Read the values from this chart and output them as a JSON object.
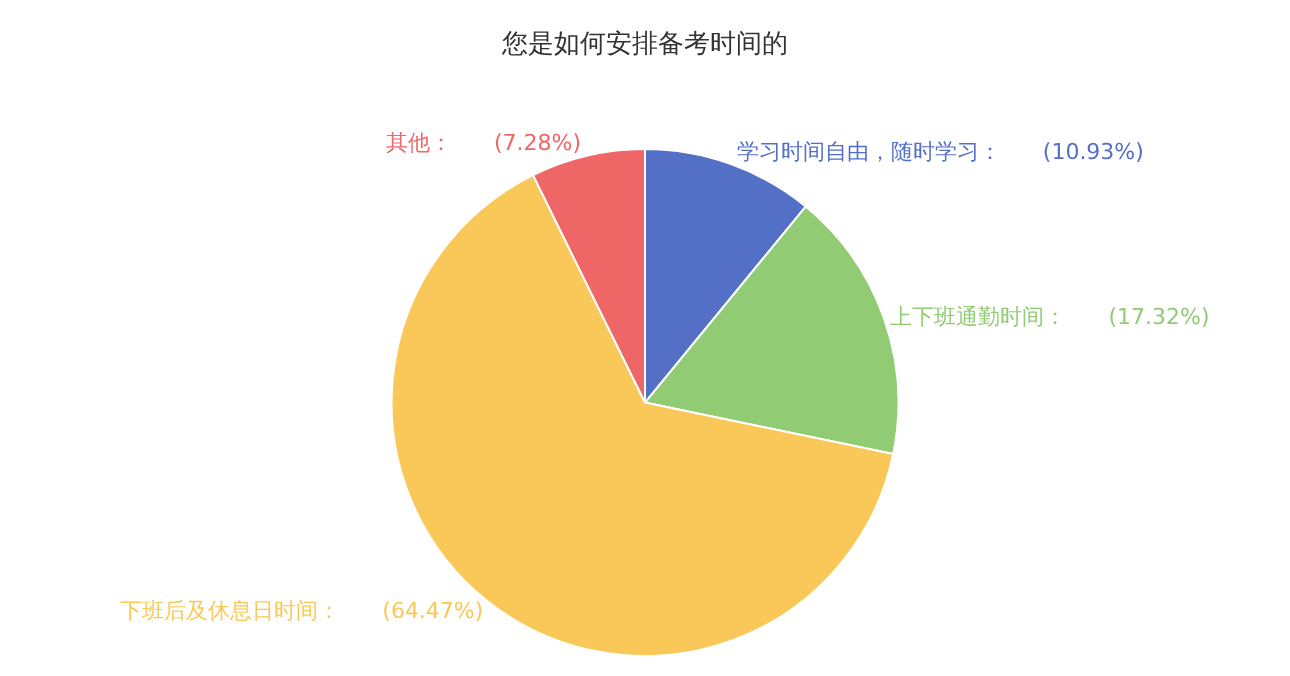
{
  "chart_data": {
    "type": "pie",
    "title": "您是如何安排备考时间的",
    "categories": [
      "学习时间自由，随时学习",
      "上下班通勤时间",
      "下班后及休息日时间",
      "其他"
    ],
    "values": [
      10.93,
      17.32,
      64.47,
      7.28
    ],
    "value_labels": [
      "(10.93%)",
      "(17.32%)",
      "(64.47%)",
      "(7.28%)"
    ],
    "colors": [
      "#5470c6",
      "#91cc75",
      "#fac858",
      "#ee6666"
    ],
    "legend": false
  }
}
